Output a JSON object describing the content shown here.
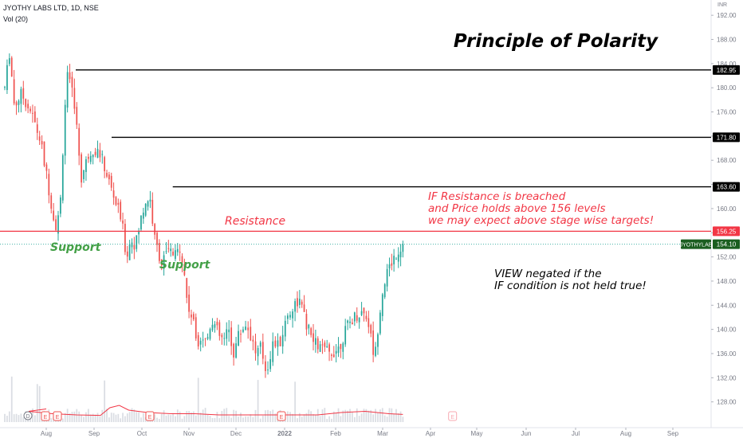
{
  "header": {
    "symbol_line": "JYOTHY LABS LTD, 1D, NSE",
    "volume_label": "Vol (20)",
    "currency": "INR"
  },
  "colors": {
    "up": "#26a69a",
    "down": "#ef5350",
    "support_text": "#43a047",
    "resistance_line": "#f23645",
    "annotation_red": "#f23645",
    "level_line": "#000000",
    "last_price_badge": "#1b5e20",
    "volume_bar": "#d1d4dc",
    "volume_ma": "#f23645"
  },
  "chart_data": {
    "type": "candlestick",
    "title": "Principle of Polarity",
    "price_axis": {
      "range": [
        124,
        194
      ],
      "ticks": [
        128,
        132,
        136,
        140,
        144,
        148,
        152,
        156,
        160,
        164,
        168,
        172,
        176,
        180,
        184,
        188,
        192
      ],
      "tick_labels": [
        "128.00",
        "132.00",
        "136.00",
        "140.00",
        "144.00",
        "148.00",
        "152.00",
        "156.00",
        "160.00",
        "164.00",
        "168.00",
        "172.00",
        "176.00",
        "180.00",
        "184.00",
        "188.00",
        "192.00"
      ]
    },
    "time_axis": {
      "labels": [
        "Aug",
        "Sep",
        "Oct",
        "Nov",
        "Dec",
        "2022",
        "Feb",
        "Mar",
        "Apr",
        "May",
        "Jun",
        "Jul",
        "Aug",
        "Sep"
      ],
      "label_month_index": [
        0,
        1,
        2,
        3,
        4,
        5,
        6,
        7,
        8,
        9,
        10,
        11,
        12,
        13
      ]
    },
    "levels": [
      {
        "price": 182.95,
        "label": "182.95",
        "start_month": 1.25
      },
      {
        "price": 171.8,
        "label": "171.80",
        "start_month": 2.0
      },
      {
        "price": 163.6,
        "label": "163.60",
        "start_month": 3.3
      }
    ],
    "resistance": {
      "price": 156.25,
      "label": "156.25"
    },
    "last_price": {
      "price": 154.1,
      "label": "154.10",
      "symbol": "JYOTHYLAB"
    },
    "annotations": {
      "support_1": "Support",
      "support_2": "Support",
      "resistance": "Resistance",
      "if_lines": [
        "IF Resistance is  breached",
        "and Price holds above 156 levels",
        "we may expect above stage wise targets!"
      ],
      "view_lines": [
        "VIEW negated if the",
        "IF condition is not held true!"
      ]
    },
    "anchors": [
      [
        0.0,
        180
      ],
      [
        0.1,
        186
      ],
      [
        0.2,
        177
      ],
      [
        0.35,
        179
      ],
      [
        0.55,
        176
      ],
      [
        0.75,
        171
      ],
      [
        0.95,
        162
      ],
      [
        1.05,
        157
      ],
      [
        1.15,
        159
      ],
      [
        1.25,
        176
      ],
      [
        1.3,
        182
      ],
      [
        1.45,
        178
      ],
      [
        1.6,
        165
      ],
      [
        1.75,
        169
      ],
      [
        1.85,
        170
      ],
      [
        2.0,
        169
      ],
      [
        2.2,
        164
      ],
      [
        2.45,
        158
      ],
      [
        2.55,
        152
      ],
      [
        2.65,
        155
      ],
      [
        2.75,
        154
      ],
      [
        2.85,
        158
      ],
      [
        2.95,
        161
      ],
      [
        3.05,
        162
      ],
      [
        3.15,
        155
      ],
      [
        3.3,
        151
      ],
      [
        3.45,
        153
      ],
      [
        3.6,
        152
      ],
      [
        3.7,
        154
      ],
      [
        3.8,
        148
      ],
      [
        3.85,
        144
      ],
      [
        3.95,
        142
      ],
      [
        4.05,
        138
      ],
      [
        4.15,
        139
      ],
      [
        4.25,
        138
      ],
      [
        4.35,
        142
      ],
      [
        4.5,
        139
      ],
      [
        4.6,
        138
      ],
      [
        4.7,
        140
      ],
      [
        4.8,
        136
      ],
      [
        4.9,
        139
      ],
      [
        5.05,
        141
      ],
      [
        5.15,
        139
      ],
      [
        5.25,
        136
      ],
      [
        5.35,
        137
      ],
      [
        5.45,
        133
      ],
      [
        5.6,
        138
      ],
      [
        5.7,
        137
      ],
      [
        5.85,
        142
      ],
      [
        6.0,
        144
      ],
      [
        6.1,
        145
      ],
      [
        6.25,
        141
      ],
      [
        6.4,
        138
      ],
      [
        6.55,
        137
      ],
      [
        6.75,
        136
      ],
      [
        6.95,
        137
      ],
      [
        7.1,
        140
      ],
      [
        7.25,
        142
      ],
      [
        7.45,
        143
      ],
      [
        7.55,
        142
      ],
      [
        7.7,
        135
      ],
      [
        7.8,
        143
      ],
      [
        7.9,
        148
      ],
      [
        8.0,
        150
      ],
      [
        8.1,
        152
      ],
      [
        8.2,
        153
      ],
      [
        8.3,
        154.1
      ]
    ],
    "volume_ma": [
      [
        0.0,
        0.55
      ],
      [
        0.5,
        0.45
      ],
      [
        1.0,
        0.35
      ],
      [
        1.5,
        0.3
      ],
      [
        2.0,
        0.28
      ],
      [
        2.2,
        0.6
      ],
      [
        2.4,
        0.7
      ],
      [
        2.6,
        0.5
      ],
      [
        3.0,
        0.4
      ],
      [
        3.5,
        0.35
      ],
      [
        4.0,
        0.35
      ],
      [
        4.5,
        0.3
      ],
      [
        5.0,
        0.3
      ],
      [
        5.5,
        0.3
      ],
      [
        6.0,
        0.3
      ],
      [
        6.5,
        0.3
      ],
      [
        7.0,
        0.4
      ],
      [
        7.5,
        0.45
      ],
      [
        8.0,
        0.35
      ],
      [
        8.3,
        0.32
      ]
    ],
    "earnings_markers": [
      0.15,
      0.4,
      3.05,
      5.75,
      9.35
    ],
    "dividend_marker": 0.05
  }
}
